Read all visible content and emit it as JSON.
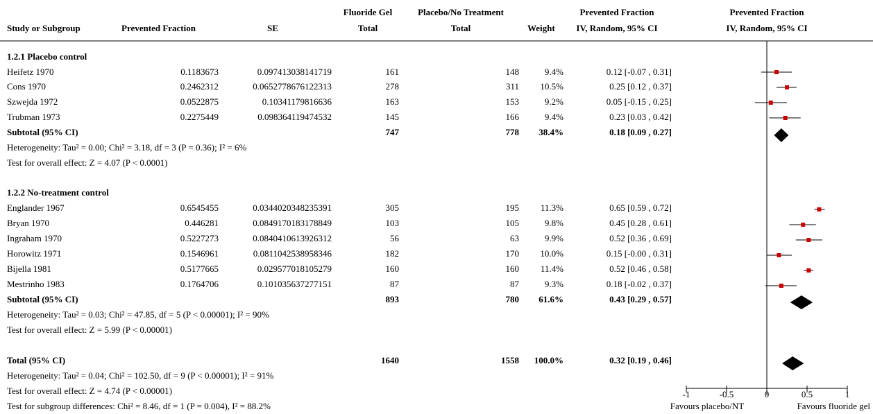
{
  "headers": {
    "study": "Study or Subgroup",
    "pf": "Prevented Fraction",
    "se": "SE",
    "gel_l1": "Fluoride Gel",
    "gel_l2": "Total",
    "ctrl_l1": "Placebo/No Treatment",
    "ctrl_l2": "Total",
    "weight": "Weight",
    "ci_l1": "Prevented Fraction",
    "ci_l2": "IV, Random, 95% CI",
    "plot_l1": "Prevented Fraction",
    "plot_l2": "IV, Random, 95% CI"
  },
  "groups": [
    {
      "title": "1.2.1 Placebo control",
      "studies": [
        {
          "study": "Heifetz 1970",
          "pf": "0.1183673",
          "se": "0.097413038141719",
          "gel": "161",
          "ctrl": "148",
          "weight": "9.4%",
          "ci": "0.12 [-0.07 , 0.31]"
        },
        {
          "study": "Cons 1970",
          "pf": "0.2462312",
          "se": "0.0652778676122313",
          "gel": "278",
          "ctrl": "311",
          "weight": "10.5%",
          "ci": "0.25 [0.12 , 0.37]"
        },
        {
          "study": "Szwejda 1972",
          "pf": "0.0522875",
          "se": "0.10341179816636",
          "gel": "163",
          "ctrl": "153",
          "weight": "9.2%",
          "ci": "0.05 [-0.15 , 0.25]"
        },
        {
          "study": "Trubman 1973",
          "pf": "0.2275449",
          "se": "0.098364119474532",
          "gel": "145",
          "ctrl": "166",
          "weight": "9.4%",
          "ci": "0.23 [0.03 , 0.42]"
        }
      ],
      "subtotal": {
        "label": "Subtotal (95% CI)",
        "gel": "747",
        "ctrl": "778",
        "weight": "38.4%",
        "ci": "0.18 [0.09 , 0.27]"
      },
      "heterogeneity": "Heterogeneity: Tau² = 0.00; Chi² = 3.18, df = 3 (P = 0.36); I² = 6%",
      "overall": "Test for overall effect: Z = 4.07 (P < 0.0001)"
    },
    {
      "title": "1.2.2 No-treatment control",
      "studies": [
        {
          "study": "Englander 1967",
          "pf": "0.6545455",
          "se": "0.0344020348235391",
          "gel": "305",
          "ctrl": "195",
          "weight": "11.3%",
          "ci": "0.65 [0.59 , 0.72]"
        },
        {
          "study": "Bryan 1970",
          "pf": "0.446281",
          "se": "0.0849170183178849",
          "gel": "103",
          "ctrl": "105",
          "weight": "9.8%",
          "ci": "0.45 [0.28 , 0.61]"
        },
        {
          "study": "Ingraham 1970",
          "pf": "0.5227273",
          "se": "0.0840410613926312",
          "gel": "56",
          "ctrl": "63",
          "weight": "9.9%",
          "ci": "0.52 [0.36 , 0.69]"
        },
        {
          "study": "Horowitz 1971",
          "pf": "0.1546961",
          "se": "0.0811042538958346",
          "gel": "182",
          "ctrl": "170",
          "weight": "10.0%",
          "ci": "0.15 [-0.00 , 0.31]"
        },
        {
          "study": "Bijella 1981",
          "pf": "0.5177665",
          "se": "0.029577018105279",
          "gel": "160",
          "ctrl": "160",
          "weight": "11.4%",
          "ci": "0.52 [0.46 , 0.58]"
        },
        {
          "study": "Mestrinho 1983",
          "pf": "0.1764706",
          "se": "0.101035637277151",
          "gel": "87",
          "ctrl": "87",
          "weight": "9.3%",
          "ci": "0.18 [-0.02 , 0.37]"
        }
      ],
      "subtotal": {
        "label": "Subtotal (95% CI)",
        "gel": "893",
        "ctrl": "780",
        "weight": "61.6%",
        "ci": "0.43 [0.29 , 0.57]"
      },
      "heterogeneity": "Heterogeneity: Tau² = 0.03; Chi² = 47.85, df = 5 (P < 0.00001); I² = 90%",
      "overall": "Test for overall effect: Z = 5.99 (P < 0.00001)"
    }
  ],
  "total": {
    "label": "Total (95% CI)",
    "gel": "1640",
    "ctrl": "1558",
    "weight": "100.0%",
    "ci": "0.32 [0.19 , 0.46]",
    "heterogeneity": "Heterogeneity: Tau² = 0.04; Chi² = 102.50, df = 9 (P < 0.00001); I² = 91%",
    "overall": "Test for overall effect: Z = 4.74 (P < 0.00001)",
    "subgroup_diff": "Test for subgroup differences: Chi² = 8.46, df = 1 (P = 0.004), I² = 88.2%"
  },
  "chart_data": {
    "type": "forest",
    "xlim": [
      -1,
      1
    ],
    "ticks": [
      -1,
      -0.5,
      0,
      0.5,
      1
    ],
    "tick_labels": [
      "-1",
      "-0.5",
      "0",
      "0.5",
      "1"
    ],
    "favours_left": "Favours placebo/NT",
    "favours_right": "Favours fluoride gel",
    "marker_color": "#cc0000",
    "studies": [
      {
        "study": "Heifetz 1970",
        "est": 0.12,
        "lo": -0.07,
        "hi": 0.31
      },
      {
        "study": "Cons 1970",
        "est": 0.25,
        "lo": 0.12,
        "hi": 0.37
      },
      {
        "study": "Szwejda 1972",
        "est": 0.05,
        "lo": -0.15,
        "hi": 0.25
      },
      {
        "study": "Trubman 1973",
        "est": 0.23,
        "lo": 0.03,
        "hi": 0.42
      },
      {
        "study": "Englander 1967",
        "est": 0.65,
        "lo": 0.59,
        "hi": 0.72
      },
      {
        "study": "Bryan 1970",
        "est": 0.45,
        "lo": 0.28,
        "hi": 0.61
      },
      {
        "study": "Ingraham 1970",
        "est": 0.52,
        "lo": 0.36,
        "hi": 0.69
      },
      {
        "study": "Horowitz 1971",
        "est": 0.15,
        "lo": -0.0,
        "hi": 0.31
      },
      {
        "study": "Bijella 1981",
        "est": 0.52,
        "lo": 0.46,
        "hi": 0.58
      },
      {
        "study": "Mestrinho 1983",
        "est": 0.18,
        "lo": -0.02,
        "hi": 0.37
      }
    ],
    "pooled": [
      {
        "label": "Subtotal 1.2.1",
        "est": 0.18,
        "lo": 0.09,
        "hi": 0.27
      },
      {
        "label": "Subtotal 1.2.2",
        "est": 0.43,
        "lo": 0.29,
        "hi": 0.57
      },
      {
        "label": "Total",
        "est": 0.32,
        "lo": 0.19,
        "hi": 0.46
      }
    ]
  }
}
